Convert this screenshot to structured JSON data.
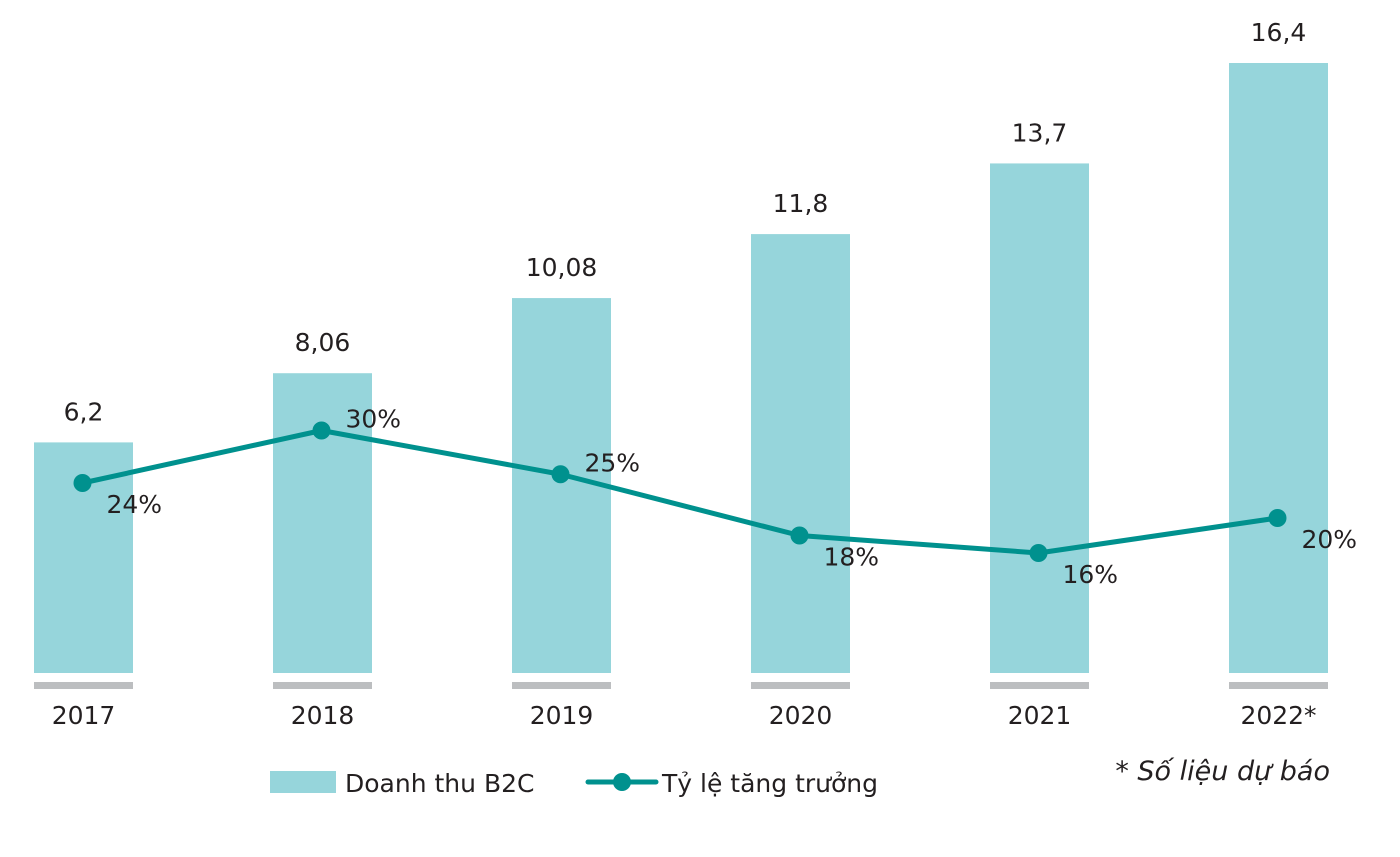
{
  "chart_data": {
    "type": "bar",
    "categories": [
      "2017",
      "2018",
      "2019",
      "2020",
      "2021",
      "2022*"
    ],
    "series": [
      {
        "name": "Doanh thu B2C",
        "type": "bar",
        "values": [
          6.2,
          8.06,
          10.08,
          11.8,
          13.7,
          16.4
        ],
        "labels": [
          "6,2",
          "8,06",
          "10,08",
          "11,8",
          "13,7",
          "16,4"
        ],
        "color": "#96d5db"
      },
      {
        "name": "Tỷ lệ tăng trưởng",
        "type": "line",
        "values": [
          24,
          30,
          25,
          18,
          16,
          20
        ],
        "labels": [
          "24%",
          "30%",
          "25%",
          "18%",
          "16%",
          "20%"
        ],
        "color": "#00918e"
      }
    ],
    "note": "* Số liệu dự báo",
    "legend_position": "bottom",
    "grid": false,
    "baseline_color": "#bcbec0"
  }
}
